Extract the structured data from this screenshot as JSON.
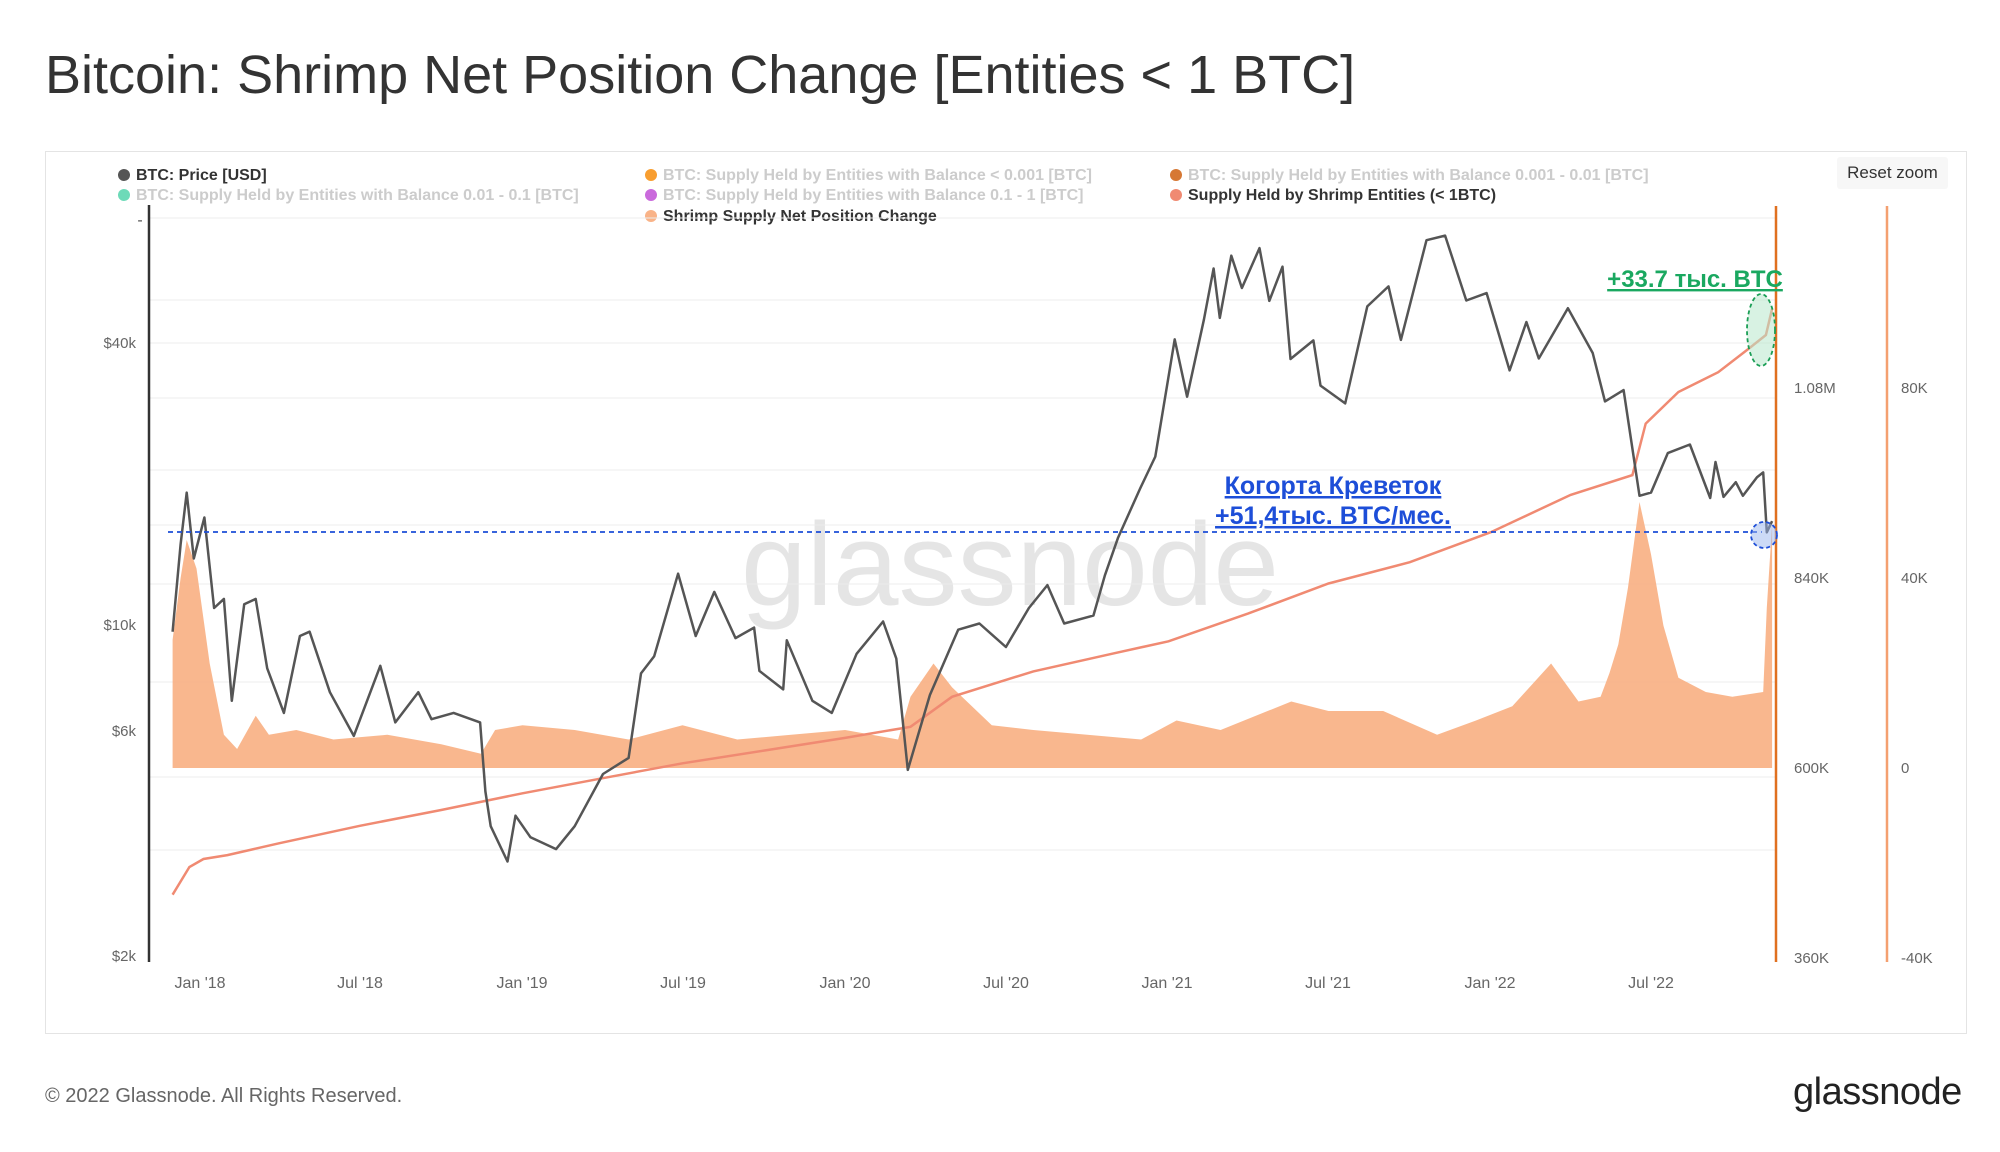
{
  "title": "Bitcoin: Shrimp Net Position Change [Entities < 1 BTC]",
  "reset_zoom": "Reset zoom",
  "footer": {
    "copyright": "© 2022 Glassnode. All Rights Reserved.",
    "brand": "glassnode"
  },
  "watermark": "glassnode",
  "legend": [
    {
      "label": "BTC: Price [USD]",
      "color": "#555555",
      "active": true
    },
    {
      "label": "BTC: Supply Held by Entities with Balance < 0.001 [BTC]",
      "color": "#f7931a",
      "active": false
    },
    {
      "label": "BTC: Supply Held by Entities with Balance 0.001 - 0.01 [BTC]",
      "color": "#d2691e",
      "active": false
    },
    {
      "label": "BTC: Supply Held by Entities with Balance 0.01 - 0.1 [BTC]",
      "color": "#5dd6b0",
      "active": false
    },
    {
      "label": "BTC: Supply Held by Entities with Balance 0.1 - 1 [BTC]",
      "color": "#c45ad8",
      "active": false
    },
    {
      "label": "Supply Held by Shrimp Entities (< 1BTC)",
      "color": "#f08a72",
      "active": true
    },
    {
      "label": "Shrimp Supply Net Position Change",
      "color": "#f9b388",
      "active": true
    }
  ],
  "annotations": {
    "green": "+33.7 тыс. BTC",
    "blue_line1": "Когорта Креветок",
    "blue_line2": "+51,4тыс. BTC/мес."
  },
  "chart_data": {
    "type": "line",
    "title": "Bitcoin: Shrimp Net Position Change [Entities < 1 BTC]",
    "x_ticks": [
      "Jan '18",
      "Jul '18",
      "Jan '19",
      "Jul '19",
      "Jan '20",
      "Jul '20",
      "Jan '21",
      "Jul '21",
      "Jan '22",
      "Jul '22"
    ],
    "y_left_ticks": [
      "$40k",
      "$10k",
      "$6k",
      "$2k"
    ],
    "y_left_scale": "log",
    "y_mid_ticks": [
      "1.08M",
      "840K",
      "600K",
      "360K"
    ],
    "y_right_ticks": [
      "80K",
      "40K",
      "0",
      "-40K"
    ],
    "y_left_range": [
      2000,
      85000
    ],
    "y_mid_range": [
      360000,
      1310000
    ],
    "y_right_range": [
      -40000,
      120000
    ],
    "x_range": [
      "2017-12-01",
      "2022-11-15"
    ],
    "series": [
      {
        "name": "BTC: Price [USD]",
        "axis": "left",
        "color": "#555555",
        "points": [
          [
            "2017-12-01",
            9800
          ],
          [
            "2017-12-10",
            15000
          ],
          [
            "2017-12-17",
            19300
          ],
          [
            "2017-12-25",
            14000
          ],
          [
            "2018-01-06",
            17100
          ],
          [
            "2018-01-17",
            11000
          ],
          [
            "2018-01-28",
            11500
          ],
          [
            "2018-02-06",
            7000
          ],
          [
            "2018-02-20",
            11200
          ],
          [
            "2018-03-05",
            11500
          ],
          [
            "2018-03-18",
            8200
          ],
          [
            "2018-04-06",
            6600
          ],
          [
            "2018-04-24",
            9600
          ],
          [
            "2018-05-05",
            9800
          ],
          [
            "2018-05-28",
            7300
          ],
          [
            "2018-06-24",
            5900
          ],
          [
            "2018-07-24",
            8300
          ],
          [
            "2018-08-10",
            6300
          ],
          [
            "2018-09-05",
            7300
          ],
          [
            "2018-09-20",
            6400
          ],
          [
            "2018-10-15",
            6600
          ],
          [
            "2018-11-14",
            6300
          ],
          [
            "2018-11-20",
            4500
          ],
          [
            "2018-11-26",
            3800
          ],
          [
            "2018-12-15",
            3200
          ],
          [
            "2018-12-24",
            4000
          ],
          [
            "2019-01-10",
            3600
          ],
          [
            "2019-02-08",
            3400
          ],
          [
            "2019-03-01",
            3800
          ],
          [
            "2019-04-02",
            4900
          ],
          [
            "2019-05-01",
            5300
          ],
          [
            "2019-05-15",
            8000
          ],
          [
            "2019-05-30",
            8700
          ],
          [
            "2019-06-26",
            13000
          ],
          [
            "2019-07-16",
            9600
          ],
          [
            "2019-08-06",
            11900
          ],
          [
            "2019-08-30",
            9500
          ],
          [
            "2019-09-20",
            10000
          ],
          [
            "2019-09-26",
            8100
          ],
          [
            "2019-10-23",
            7400
          ],
          [
            "2019-10-27",
            9400
          ],
          [
            "2019-11-25",
            7000
          ],
          [
            "2019-12-17",
            6600
          ],
          [
            "2020-01-14",
            8800
          ],
          [
            "2020-02-13",
            10300
          ],
          [
            "2020-02-28",
            8600
          ],
          [
            "2020-03-12",
            5000
          ],
          [
            "2020-04-06",
            7200
          ],
          [
            "2020-05-08",
            9900
          ],
          [
            "2020-06-01",
            10200
          ],
          [
            "2020-07-01",
            9100
          ],
          [
            "2020-07-27",
            11000
          ],
          [
            "2020-08-17",
            12300
          ],
          [
            "2020-09-05",
            10200
          ],
          [
            "2020-10-08",
            10600
          ],
          [
            "2020-10-21",
            12900
          ],
          [
            "2020-11-05",
            15500
          ],
          [
            "2020-11-30",
            19700
          ],
          [
            "2020-12-17",
            23000
          ],
          [
            "2021-01-08",
            40700
          ],
          [
            "2021-01-22",
            30800
          ],
          [
            "2021-02-10",
            44800
          ],
          [
            "2021-02-21",
            57500
          ],
          [
            "2021-02-28",
            45200
          ],
          [
            "2021-03-13",
            61200
          ],
          [
            "2021-03-25",
            52300
          ],
          [
            "2021-04-14",
            63500
          ],
          [
            "2021-04-25",
            49100
          ],
          [
            "2021-05-10",
            58000
          ],
          [
            "2021-05-19",
            37000
          ],
          [
            "2021-06-14",
            40500
          ],
          [
            "2021-06-22",
            32500
          ],
          [
            "2021-07-20",
            29800
          ],
          [
            "2021-08-14",
            47800
          ],
          [
            "2021-09-07",
            52700
          ],
          [
            "2021-09-21",
            40600
          ],
          [
            "2021-10-20",
            66000
          ],
          [
            "2021-11-10",
            67500
          ],
          [
            "2021-12-04",
            49200
          ],
          [
            "2021-12-27",
            51000
          ],
          [
            "2022-01-22",
            35000
          ],
          [
            "2022-02-10",
            44300
          ],
          [
            "2022-02-24",
            37100
          ],
          [
            "2022-03-29",
            47400
          ],
          [
            "2022-04-26",
            38100
          ],
          [
            "2022-05-10",
            30100
          ],
          [
            "2022-05-31",
            31800
          ],
          [
            "2022-06-18",
            19000
          ],
          [
            "2022-07-01",
            19300
          ],
          [
            "2022-07-20",
            23400
          ],
          [
            "2022-08-14",
            24400
          ],
          [
            "2022-09-06",
            18800
          ],
          [
            "2022-09-12",
            22400
          ],
          [
            "2022-09-21",
            18900
          ],
          [
            "2022-10-05",
            20300
          ],
          [
            "2022-10-13",
            19000
          ],
          [
            "2022-10-29",
            20800
          ],
          [
            "2022-11-05",
            21300
          ],
          [
            "2022-11-09",
            15900
          ],
          [
            "2022-11-15",
            16800
          ]
        ]
      },
      {
        "name": "Supply Held by Shrimp Entities (< 1BTC)",
        "axis": "mid",
        "color": "#f08a72",
        "points": [
          [
            "2017-12-01",
            440000
          ],
          [
            "2017-12-20",
            475000
          ],
          [
            "2018-01-05",
            485000
          ],
          [
            "2018-02-01",
            490000
          ],
          [
            "2018-04-01",
            505000
          ],
          [
            "2018-07-01",
            527000
          ],
          [
            "2018-10-01",
            547000
          ],
          [
            "2019-01-01",
            568000
          ],
          [
            "2019-04-01",
            587000
          ],
          [
            "2019-07-01",
            606000
          ],
          [
            "2019-10-01",
            622000
          ],
          [
            "2020-01-01",
            638000
          ],
          [
            "2020-03-15",
            652000
          ],
          [
            "2020-05-01",
            690000
          ],
          [
            "2020-08-01",
            722000
          ],
          [
            "2020-11-01",
            745000
          ],
          [
            "2021-01-01",
            760000
          ],
          [
            "2021-04-01",
            795000
          ],
          [
            "2021-07-01",
            833000
          ],
          [
            "2021-10-01",
            860000
          ],
          [
            "2022-01-01",
            898000
          ],
          [
            "2022-04-01",
            945000
          ],
          [
            "2022-06-10",
            970000
          ],
          [
            "2022-06-25",
            1035000
          ],
          [
            "2022-08-01",
            1075000
          ],
          [
            "2022-09-15",
            1100000
          ],
          [
            "2022-10-20",
            1130000
          ],
          [
            "2022-11-08",
            1147000
          ],
          [
            "2022-11-15",
            1180000
          ]
        ]
      },
      {
        "name": "Shrimp Supply Net Position Change",
        "axis": "right",
        "color": "#f9b388",
        "type": "area",
        "points": [
          [
            "2017-12-01",
            27000
          ],
          [
            "2017-12-10",
            40000
          ],
          [
            "2017-12-17",
            48000
          ],
          [
            "2017-12-28",
            42000
          ],
          [
            "2018-01-12",
            22000
          ],
          [
            "2018-01-28",
            7000
          ],
          [
            "2018-02-12",
            4000
          ],
          [
            "2018-03-05",
            11000
          ],
          [
            "2018-03-20",
            7000
          ],
          [
            "2018-04-20",
            8000
          ],
          [
            "2018-06-01",
            6000
          ],
          [
            "2018-08-01",
            7000
          ],
          [
            "2018-10-01",
            5000
          ],
          [
            "2018-11-15",
            3000
          ],
          [
            "2018-12-01",
            8000
          ],
          [
            "2019-01-01",
            9000
          ],
          [
            "2019-03-01",
            8000
          ],
          [
            "2019-05-01",
            6000
          ],
          [
            "2019-07-01",
            9000
          ],
          [
            "2019-09-01",
            6000
          ],
          [
            "2019-11-01",
            7000
          ],
          [
            "2020-01-01",
            8000
          ],
          [
            "2020-03-01",
            6000
          ],
          [
            "2020-03-15",
            15000
          ],
          [
            "2020-04-10",
            22000
          ],
          [
            "2020-05-01",
            17000
          ],
          [
            "2020-06-15",
            9000
          ],
          [
            "2020-08-01",
            8000
          ],
          [
            "2020-10-01",
            7000
          ],
          [
            "2020-12-01",
            6000
          ],
          [
            "2021-01-10",
            10000
          ],
          [
            "2021-03-01",
            8000
          ],
          [
            "2021-05-20",
            14000
          ],
          [
            "2021-07-01",
            12000
          ],
          [
            "2021-09-01",
            12000
          ],
          [
            "2021-11-01",
            7000
          ],
          [
            "2021-12-15",
            10000
          ],
          [
            "2022-01-25",
            13000
          ],
          [
            "2022-03-10",
            22000
          ],
          [
            "2022-04-10",
            14000
          ],
          [
            "2022-05-05",
            15000
          ],
          [
            "2022-05-15",
            20000
          ],
          [
            "2022-05-25",
            26000
          ],
          [
            "2022-06-05",
            38000
          ],
          [
            "2022-06-18",
            56000
          ],
          [
            "2022-07-01",
            45000
          ],
          [
            "2022-07-15",
            30000
          ],
          [
            "2022-08-01",
            19000
          ],
          [
            "2022-09-01",
            16000
          ],
          [
            "2022-10-01",
            15000
          ],
          [
            "2022-11-05",
            16000
          ],
          [
            "2022-11-09",
            33700
          ],
          [
            "2022-11-15",
            51400
          ]
        ]
      }
    ]
  }
}
